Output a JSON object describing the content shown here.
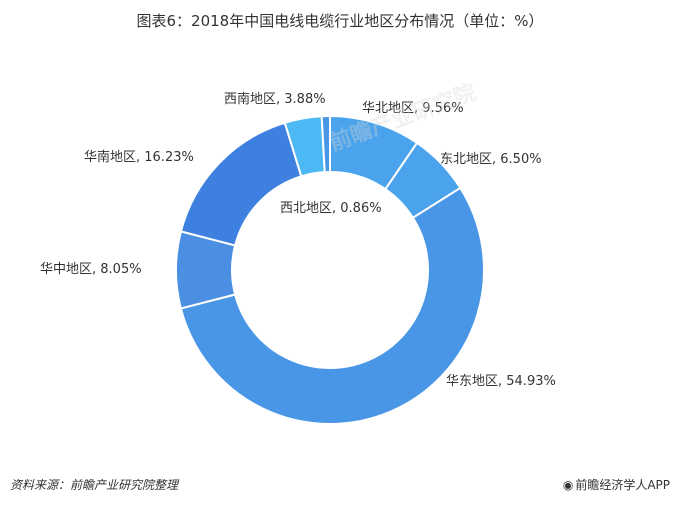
{
  "chart_data": {
    "type": "pie",
    "title": "图表6：2018年中国电线电缆行业地区分布情况（单位：%）",
    "categories": [
      "华北地区",
      "东北地区",
      "华东地区",
      "华中地区",
      "华南地区",
      "西南地区",
      "西北地区"
    ],
    "values": [
      9.56,
      6.5,
      54.93,
      8.05,
      16.23,
      3.88,
      0.86
    ],
    "labels": [
      "华北地区, 9.56%",
      "东北地区, 6.50%",
      "华东地区, 54.93%",
      "华中地区, 8.05%",
      "华南地区, 16.23%",
      "西南地区, 3.88%",
      "西北地区, 0.86%"
    ],
    "colors": [
      "#4aa3ec",
      "#4aa3ec",
      "#4a96e6",
      "#4a8fe2",
      "#3d80df",
      "#4cb8f4",
      "#4a96e6"
    ],
    "donut": true,
    "legend": "none"
  },
  "footer": {
    "source": "资料来源：前瞻产业研究院整理",
    "brand_icon": "brand-logo-icon",
    "brand": "前瞻经济学人APP"
  },
  "watermark": {
    "text": "前瞻产业研究院"
  }
}
